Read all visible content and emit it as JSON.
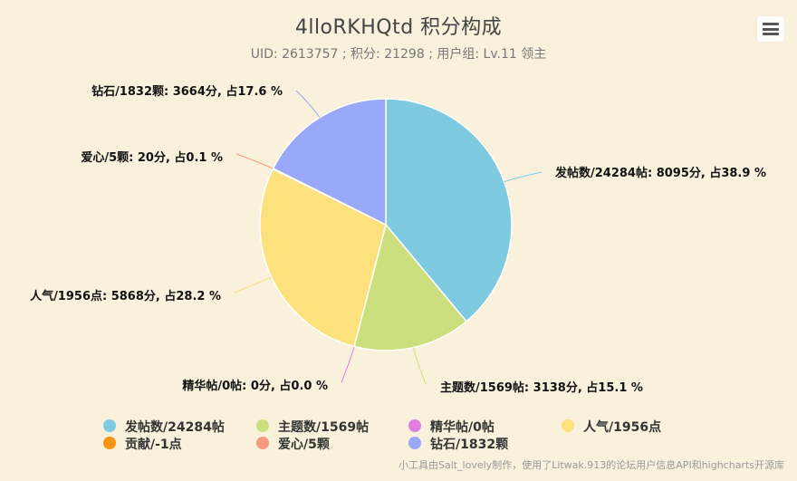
{
  "chart_data": {
    "type": "pie",
    "title": "4lloRKHQtd 积分构成",
    "subtitle": "UID: 2613757 ; 积分: 21298 ; 用户组: Lv.11 领主",
    "credit": "小工具由Salt_lovely制作，使用了Litwak.913的论坛用户信息API和highcharts开源库",
    "slices": [
      {
        "name": "发帖数/24284帖",
        "value": 8095,
        "percent": 38.9,
        "color": "#7ecbe1",
        "label": "发帖数/24284帖: 8095分, 占38.9 %"
      },
      {
        "name": "主题数/1569帖",
        "value": 3138,
        "percent": 15.1,
        "color": "#cbe07c",
        "label": "主题数/1569帖: 3138分, 占15.1 %"
      },
      {
        "name": "精华帖/0帖",
        "value": 0,
        "percent": 0.0,
        "color": "#e07ee1",
        "label": "精华帖/0帖: 0分, 占0.0 %"
      },
      {
        "name": "人气/1956点",
        "value": 5868,
        "percent": 28.2,
        "color": "#fce17c",
        "label": "人气/1956点: 5868分, 占28.2 %"
      },
      {
        "name": "贡献/-1点",
        "value": 0,
        "percent": 0.0,
        "color": "#f7960e",
        "label": ""
      },
      {
        "name": "爱心/5颗",
        "value": 20,
        "percent": 0.1,
        "color": "#f59a82",
        "label": "爱心/5颗: 20分, 占0.1 %"
      },
      {
        "name": "钻石/1832颗",
        "value": 3664,
        "percent": 17.6,
        "color": "#9aa8f8",
        "label": "钻石/1832颗: 3664分, 占17.6 %"
      }
    ],
    "legend": {
      "position": "bottom"
    }
  },
  "icons": {
    "menu": "menu-icon"
  }
}
